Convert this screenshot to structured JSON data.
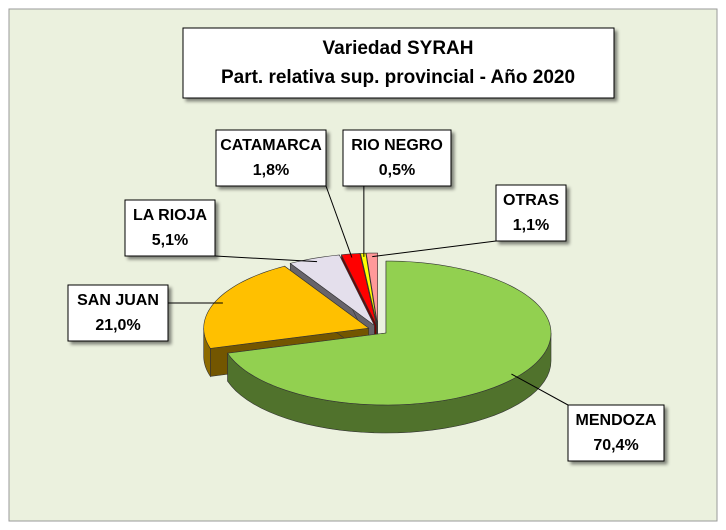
{
  "chart_data": {
    "type": "pie3d",
    "title": "Variedad SYRAH",
    "subtitle": "Part. relativa sup. provincial - Año 2020",
    "categories": [
      "MENDOZA",
      "SAN JUAN",
      "LA RIOJA",
      "CATAMARCA",
      "RIO NEGRO",
      "OTRAS"
    ],
    "values": [
      70.4,
      21.0,
      5.1,
      1.8,
      0.5,
      1.1
    ],
    "value_labels": [
      "70,4%",
      "21,0%",
      "5,1%",
      "1,8%",
      "0,5%",
      "1,1%"
    ],
    "colors": [
      "#92d050",
      "#ffc000",
      "#e4dfec",
      "#ff0000",
      "#ffff00",
      "#ff9999"
    ]
  }
}
